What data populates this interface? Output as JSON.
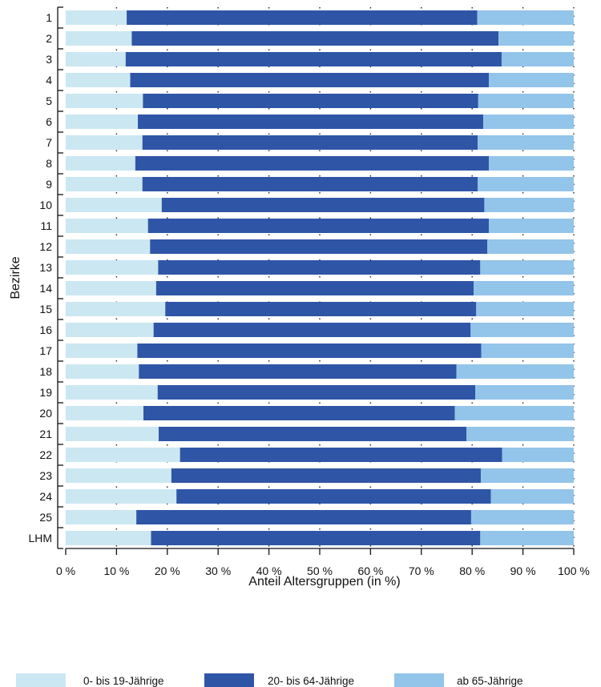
{
  "chart_data": {
    "type": "bar",
    "orientation": "horizontal",
    "stacked": true,
    "categories": [
      "1",
      "2",
      "3",
      "4",
      "5",
      "6",
      "7",
      "8",
      "9",
      "10",
      "11",
      "12",
      "13",
      "14",
      "15",
      "16",
      "17",
      "18",
      "19",
      "20",
      "21",
      "22",
      "23",
      "24",
      "25",
      "LHM"
    ],
    "xlabel": "Anteil Altersgruppen (in %)",
    "ylabel": "Bezirke",
    "xlim": [
      0,
      100
    ],
    "xticks": [
      "0 %",
      "10 %",
      "20 %",
      "30 %",
      "40 %",
      "50 %",
      "60 %",
      "70 %",
      "80 %",
      "90 %",
      "100 %"
    ],
    "grid": "vertical dotted",
    "legend_position": "bottom",
    "series": [
      {
        "name": "0- bis 19-Jährige",
        "color": "#cbe7f2",
        "values": [
          12.0,
          13.0,
          11.8,
          12.7,
          15.2,
          14.2,
          15.1,
          13.7,
          15.1,
          18.9,
          16.2,
          16.6,
          18.2,
          17.8,
          19.6,
          17.3,
          14.1,
          14.4,
          18.1,
          15.3,
          18.3,
          22.5,
          20.8,
          21.8,
          13.9,
          16.8
        ]
      },
      {
        "name": "20- bis 64-Jährige",
        "color": "#2f55a6",
        "values": [
          69.0,
          72.2,
          74.0,
          70.6,
          66.0,
          68.0,
          66.0,
          69.6,
          66.0,
          63.5,
          67.1,
          66.4,
          63.4,
          62.5,
          61.2,
          62.4,
          67.7,
          62.5,
          62.5,
          61.3,
          60.6,
          63.4,
          60.9,
          61.9,
          65.9,
          64.8
        ]
      },
      {
        "name": "ab 65-Jährige",
        "color": "#93c4ea",
        "values": [
          19.0,
          14.8,
          14.2,
          16.7,
          18.8,
          17.8,
          18.9,
          16.7,
          18.9,
          17.6,
          16.7,
          17.0,
          18.4,
          19.7,
          19.2,
          20.3,
          18.2,
          23.1,
          19.4,
          23.4,
          21.1,
          14.1,
          18.3,
          16.3,
          20.2,
          18.4
        ]
      }
    ]
  }
}
